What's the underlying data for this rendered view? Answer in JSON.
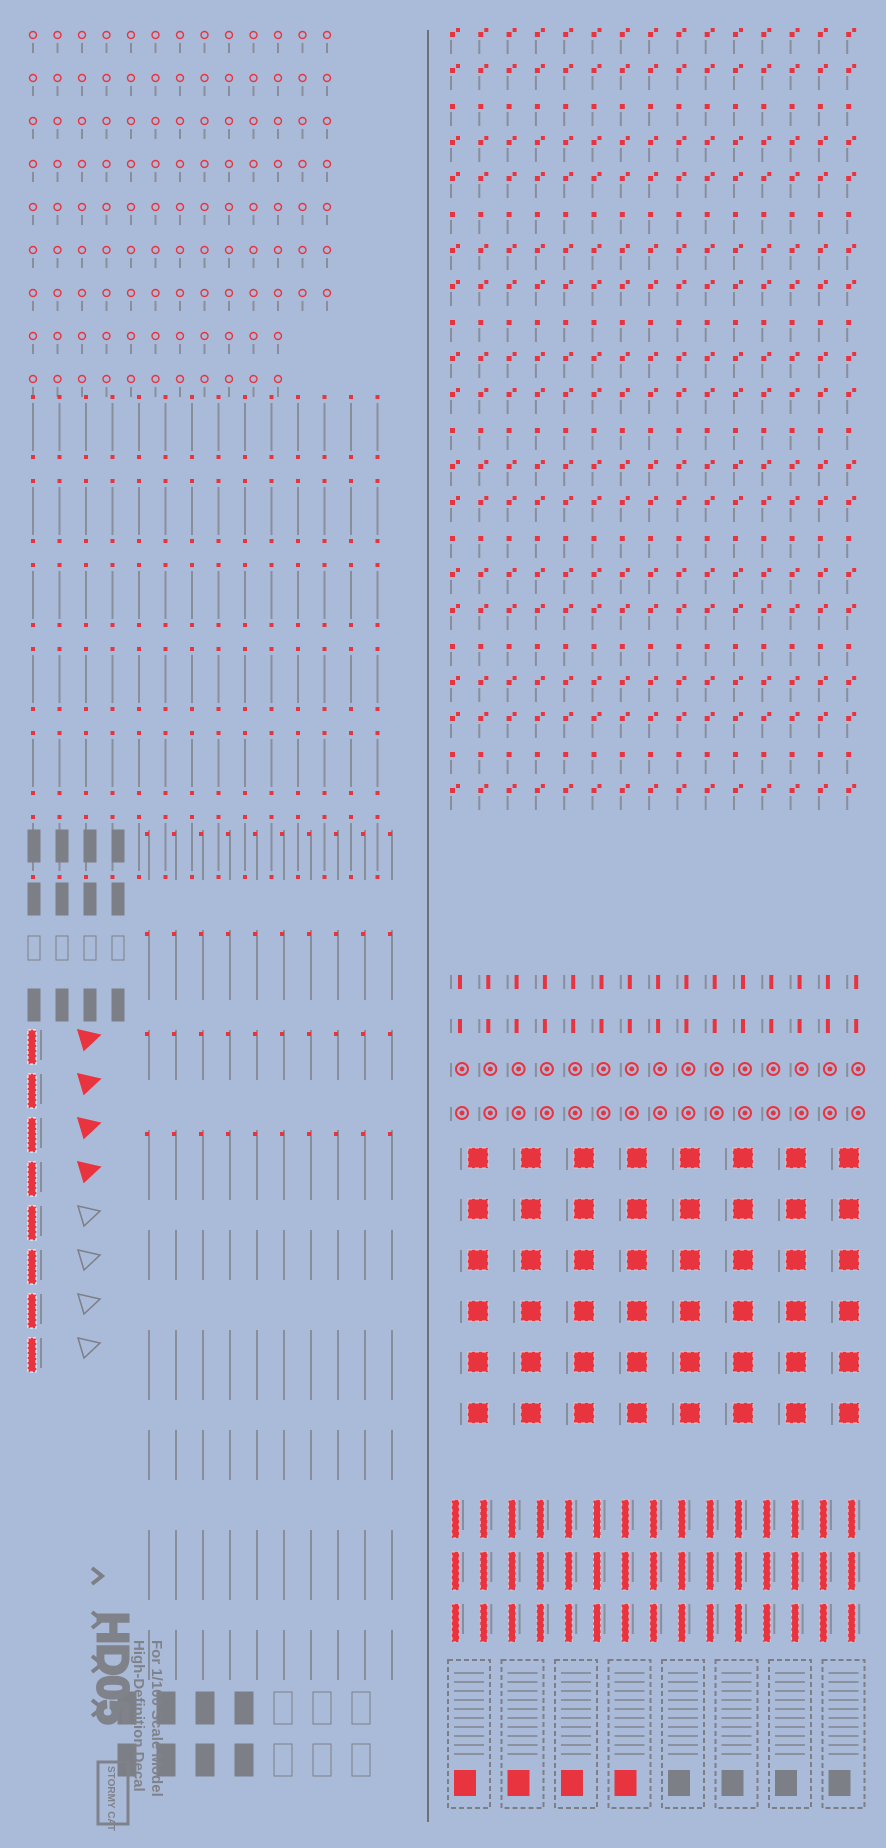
{
  "sheet": {
    "code": "HD05",
    "line1": "High-Definition Decal",
    "line2": "For 1/100 Scale Model",
    "brand": "STORMY CAT"
  }
}
